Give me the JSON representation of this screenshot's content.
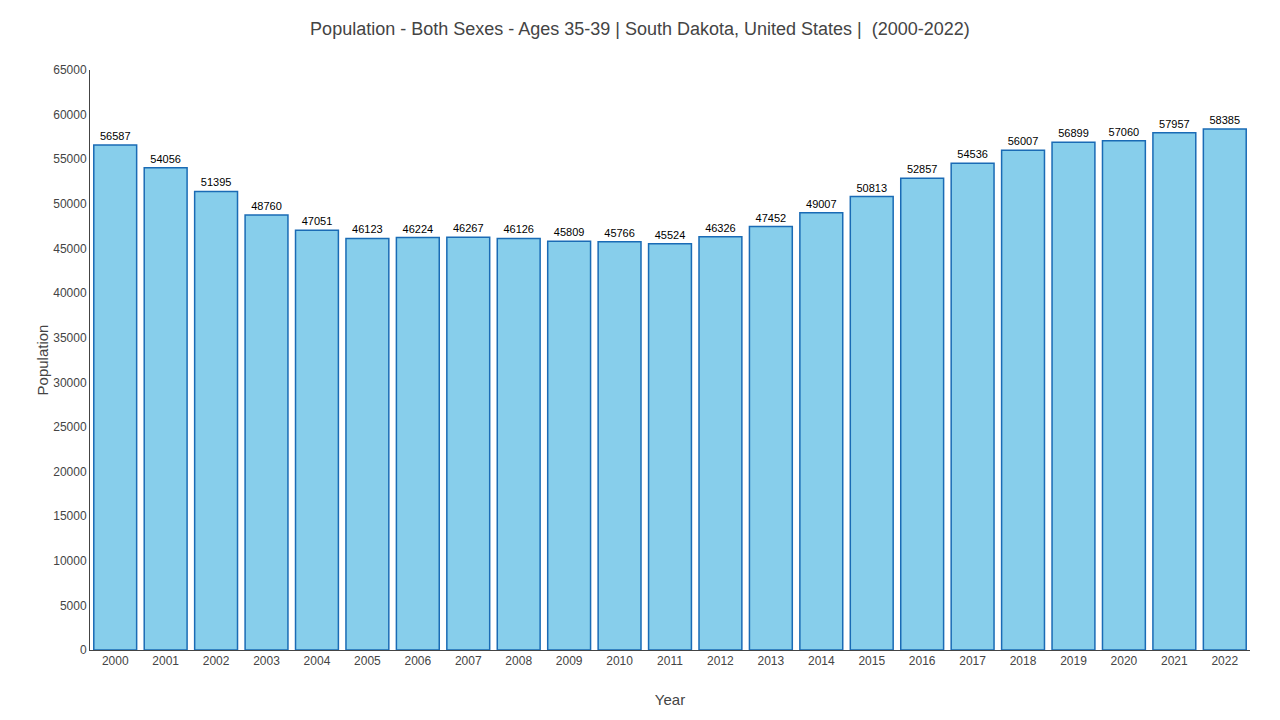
{
  "chart_data": {
    "type": "bar",
    "title": "Population - Both Sexes - Ages 35-39 | South Dakota, United States |  (2000-2022)",
    "xlabel": "Year",
    "ylabel": "Population",
    "categories": [
      "2000",
      "2001",
      "2002",
      "2003",
      "2004",
      "2005",
      "2006",
      "2007",
      "2008",
      "2009",
      "2010",
      "2011",
      "2012",
      "2013",
      "2014",
      "2015",
      "2016",
      "2017",
      "2018",
      "2019",
      "2020",
      "2021",
      "2022"
    ],
    "values": [
      56587,
      54056,
      51395,
      48760,
      47051,
      46123,
      46224,
      46267,
      46126,
      45809,
      45766,
      45524,
      46326,
      47452,
      49007,
      50813,
      52857,
      54536,
      56007,
      56899,
      57060,
      57957,
      58385
    ],
    "color": "#87ceeb",
    "ylim": [
      0,
      65000
    ],
    "yticks": [
      0,
      5000,
      10000,
      15000,
      20000,
      25000,
      30000,
      35000,
      40000,
      45000,
      50000,
      55000,
      60000,
      65000
    ],
    "grid": false,
    "data_labels": true
  }
}
